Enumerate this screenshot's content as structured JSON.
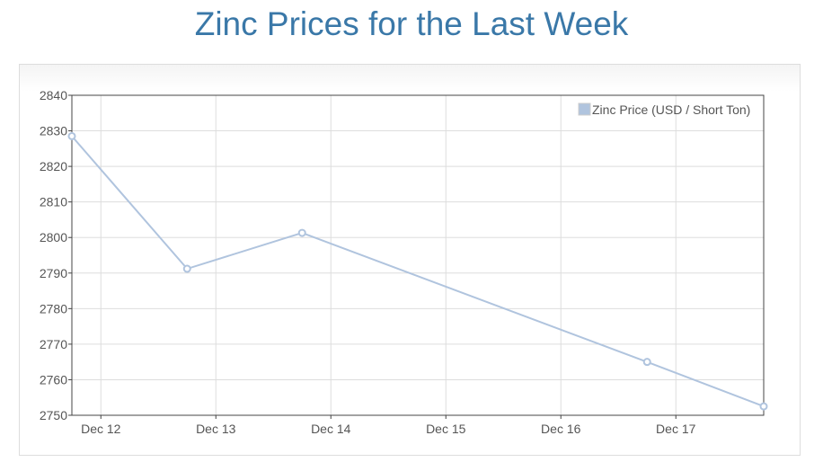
{
  "page": {
    "title": "Zinc Prices for the Last Week"
  },
  "chart_data": {
    "type": "line",
    "x_unit": "day",
    "x_ticks": [
      "Dec 12",
      "Dec 13",
      "Dec 14",
      "Dec 15",
      "Dec 16",
      "Dec 17"
    ],
    "x_range": [
      "Dec 11 17:57",
      "Dec 17 18:20"
    ],
    "ylim": [
      2750,
      2840
    ],
    "y_ticks": [
      2750,
      2760,
      2770,
      2780,
      2790,
      2800,
      2810,
      2820,
      2830,
      2840
    ],
    "grid": true,
    "legend_position": "top-right",
    "series": [
      {
        "name": "Zinc Price (USD / Short Ton)",
        "color": "#b0c4de",
        "points": [
          {
            "x": "Dec 11 17:57",
            "y": 2828.5
          },
          {
            "x": "Dec 12 18:00",
            "y": 2791.2
          },
          {
            "x": "Dec 13 18:00",
            "y": 2801.3
          },
          {
            "x": "Dec 16 18:00",
            "y": 2765.0
          },
          {
            "x": "Dec 17 18:20",
            "y": 2752.5
          }
        ]
      }
    ]
  }
}
